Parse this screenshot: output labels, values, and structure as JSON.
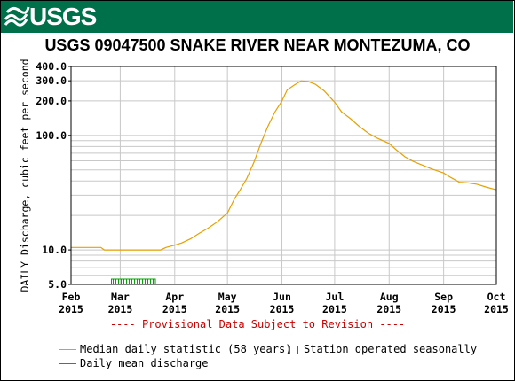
{
  "header": {
    "logo": "USGS"
  },
  "chart_data": {
    "type": "line",
    "title": "USGS 09047500 SNAKE RIVER NEAR MONTEZUMA, CO",
    "ylabel": "DAILY Discharge, cubic feet per second",
    "yscale": "log",
    "ylim": [
      5.0,
      400.0
    ],
    "yticks": [
      "5.0",
      "10.0",
      "100.0",
      "200.0",
      "300.0",
      "400.0"
    ],
    "xlim": [
      "2015-02-01",
      "2015-10-01"
    ],
    "xticks": [
      {
        "date": "2015-02-01",
        "label1": "Feb",
        "label2": "2015"
      },
      {
        "date": "2015-03-01",
        "label1": "Mar",
        "label2": "2015"
      },
      {
        "date": "2015-04-01",
        "label1": "Apr",
        "label2": "2015"
      },
      {
        "date": "2015-05-01",
        "label1": "May",
        "label2": "2015"
      },
      {
        "date": "2015-06-01",
        "label1": "Jun",
        "label2": "2015"
      },
      {
        "date": "2015-07-01",
        "label1": "Jul",
        "label2": "2015"
      },
      {
        "date": "2015-08-01",
        "label1": "Aug",
        "label2": "2015"
      },
      {
        "date": "2015-09-01",
        "label1": "Sep",
        "label2": "2015"
      },
      {
        "date": "2015-10-01",
        "label1": "Oct",
        "label2": "2015"
      }
    ],
    "grid": true,
    "series": [
      {
        "name": "Median daily statistic (58 years)",
        "color": "#e8a000",
        "points": [
          [
            "2015-02-01",
            10.5
          ],
          [
            "2015-02-18",
            10.5
          ],
          [
            "2015-02-20",
            10.0
          ],
          [
            "2015-03-10",
            10.0
          ],
          [
            "2015-03-24",
            10.0
          ],
          [
            "2015-03-27",
            10.5
          ],
          [
            "2015-04-01",
            11.0
          ],
          [
            "2015-04-05",
            11.5
          ],
          [
            "2015-04-10",
            12.5
          ],
          [
            "2015-04-15",
            14.0
          ],
          [
            "2015-04-20",
            15.5
          ],
          [
            "2015-04-25",
            17.5
          ],
          [
            "2015-05-01",
            21.0
          ],
          [
            "2015-05-05",
            28.0
          ],
          [
            "2015-05-08",
            33.0
          ],
          [
            "2015-05-12",
            42.0
          ],
          [
            "2015-05-16",
            58.0
          ],
          [
            "2015-05-20",
            85.0
          ],
          [
            "2015-05-24",
            120.0
          ],
          [
            "2015-05-28",
            160.0
          ],
          [
            "2015-06-01",
            200.0
          ],
          [
            "2015-06-04",
            250.0
          ],
          [
            "2015-06-08",
            275.0
          ],
          [
            "2015-06-12",
            300.0
          ],
          [
            "2015-06-16",
            295.0
          ],
          [
            "2015-06-20",
            280.0
          ],
          [
            "2015-06-25",
            245.0
          ],
          [
            "2015-07-01",
            195.0
          ],
          [
            "2015-07-05",
            160.0
          ],
          [
            "2015-07-10",
            140.0
          ],
          [
            "2015-07-15",
            120.0
          ],
          [
            "2015-07-20",
            105.0
          ],
          [
            "2015-07-25",
            95.0
          ],
          [
            "2015-08-01",
            85.0
          ],
          [
            "2015-08-05",
            75.0
          ],
          [
            "2015-08-10",
            65.0
          ],
          [
            "2015-08-15",
            59.0
          ],
          [
            "2015-08-20",
            55.0
          ],
          [
            "2015-08-25",
            51.0
          ],
          [
            "2015-09-01",
            47.0
          ],
          [
            "2015-09-05",
            43.0
          ],
          [
            "2015-09-10",
            39.0
          ],
          [
            "2015-09-15",
            38.5
          ],
          [
            "2015-09-20",
            37.5
          ],
          [
            "2015-09-25",
            35.5
          ],
          [
            "2015-10-01",
            33.5
          ]
        ]
      }
    ],
    "seasonal_band": {
      "start": "2015-02-24",
      "end": "2015-03-21",
      "color": "#00a000"
    },
    "annotation": "---- Provisional Data Subject to Revision ----",
    "legend": [
      {
        "label": "Median daily statistic (58 years)",
        "symbol": "line",
        "color": "#e8a000"
      },
      {
        "label": "Station operated seasonally",
        "symbol": "box",
        "color": "#00a000"
      },
      {
        "label": "Daily mean discharge",
        "symbol": "line",
        "color": "#2080a0"
      }
    ]
  }
}
